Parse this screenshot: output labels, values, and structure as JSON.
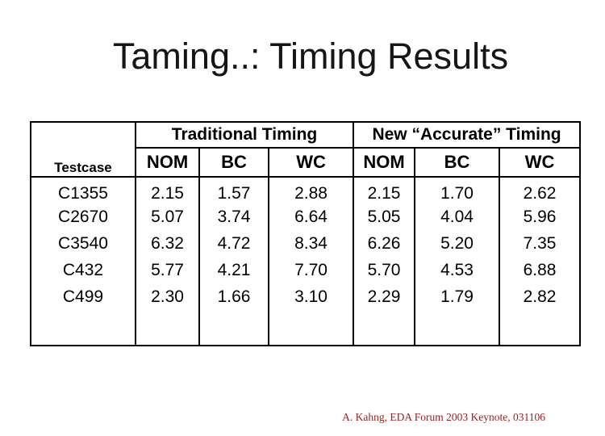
{
  "slide": {
    "title": "Taming..: Timing Results",
    "footer": "A. Kahng, EDA Forum 2003 Keynote, 031106"
  },
  "table": {
    "corner_label": "Testcase",
    "groups": [
      {
        "label": "Traditional Timing",
        "columns": [
          "NOM",
          "BC",
          "WC"
        ]
      },
      {
        "label": "New “Accurate” Timing",
        "columns": [
          "NOM",
          "BC",
          "WC"
        ]
      }
    ],
    "rows": [
      {
        "testcase": "C1355",
        "values": [
          "2.15",
          "1.57",
          "2.88",
          "2.15",
          "1.70",
          "2.62"
        ]
      },
      {
        "testcase": "C2670",
        "values": [
          "5.07",
          "3.74",
          "6.64",
          "5.05",
          "4.04",
          "5.96"
        ]
      },
      {
        "testcase": "C3540",
        "values": [
          "6.32",
          "4.72",
          "8.34",
          "6.26",
          "5.20",
          "7.35"
        ]
      },
      {
        "testcase": "C432",
        "values": [
          "5.77",
          "4.21",
          "7.70",
          "5.70",
          "4.53",
          "6.88"
        ]
      },
      {
        "testcase": "C499",
        "values": [
          "2.30",
          "1.66",
          "3.10",
          "2.29",
          "1.79",
          "2.82"
        ]
      }
    ]
  },
  "colors": {
    "background": "#ffffff",
    "text": "#000000",
    "title_text": "#161616",
    "table_border": "#000000",
    "footer_red": "#9c1f1f"
  },
  "chart_data": {
    "type": "table",
    "title": "Taming..: Timing Results",
    "categories": [
      "C1355",
      "C2670",
      "C3540",
      "C432",
      "C499"
    ],
    "series": [
      {
        "name": "Traditional Timing NOM",
        "values": [
          2.15,
          5.07,
          6.32,
          5.77,
          2.3
        ]
      },
      {
        "name": "Traditional Timing BC",
        "values": [
          1.57,
          3.74,
          4.72,
          4.21,
          1.66
        ]
      },
      {
        "name": "Traditional Timing WC",
        "values": [
          2.88,
          6.64,
          8.34,
          7.7,
          3.1
        ]
      },
      {
        "name": "New “Accurate” Timing NOM",
        "values": [
          2.15,
          5.05,
          6.26,
          5.7,
          2.29
        ]
      },
      {
        "name": "New “Accurate” Timing BC",
        "values": [
          1.7,
          4.04,
          5.2,
          4.53,
          1.79
        ]
      },
      {
        "name": "New “Accurate” Timing WC",
        "values": [
          2.62,
          5.96,
          7.35,
          6.88,
          2.82
        ]
      }
    ]
  }
}
